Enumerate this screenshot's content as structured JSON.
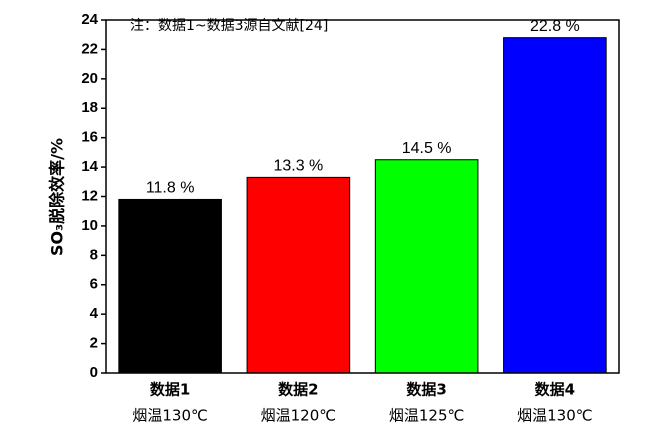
{
  "chart_data": {
    "type": "bar",
    "y_label": "SO₃脱除效率/%",
    "annotation": "注：数据1~数据3源自文献[24]",
    "categories": [
      "数据1",
      "数据2",
      "数据3",
      "数据4"
    ],
    "category_notes": [
      "烟温130℃",
      "烟温120℃",
      "烟温125℃",
      "烟温130℃"
    ],
    "values": [
      11.8,
      13.3,
      14.5,
      22.8
    ],
    "value_labels": [
      "11.8 %",
      "13.3 %",
      "14.5 %",
      "22.8 %"
    ],
    "colors": [
      "#000000",
      "#ff0000",
      "#00ff00",
      "#0000ff"
    ],
    "ylim": [
      0,
      24
    ],
    "yticks": [
      0,
      2,
      4,
      6,
      8,
      10,
      12,
      14,
      16,
      18,
      20,
      22,
      24
    ]
  }
}
